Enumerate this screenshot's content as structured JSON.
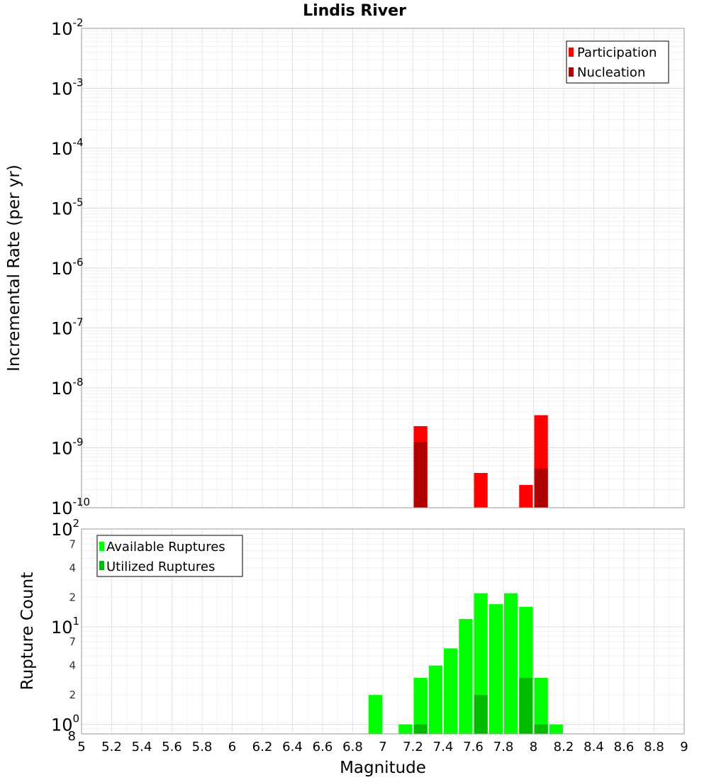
{
  "chart_data": [
    {
      "type": "bar",
      "title": "Lindis River",
      "xlabel": "",
      "ylabel": "Incremental Rate (per yr)",
      "xlim": [
        5,
        9
      ],
      "ylim": [
        1e-10,
        0.01
      ],
      "yscale": "log",
      "grid": true,
      "legend_position": "top-right",
      "bin_width": 0.1,
      "y_ticks": [
        {
          "base": "10",
          "exp": "-2"
        },
        {
          "base": "10",
          "exp": "-3"
        },
        {
          "base": "10",
          "exp": "-4"
        },
        {
          "base": "10",
          "exp": "-5"
        },
        {
          "base": "10",
          "exp": "-6"
        },
        {
          "base": "10",
          "exp": "-7"
        },
        {
          "base": "10",
          "exp": "-8"
        },
        {
          "base": "10",
          "exp": "-9"
        },
        {
          "base": "10",
          "exp": "-10"
        }
      ],
      "series": [
        {
          "name": "Participation",
          "color": "#ff0000",
          "x": [
            7.25,
            7.65,
            7.95,
            8.05
          ],
          "values": [
            2.3e-09,
            3.8e-10,
            2.4e-10,
            3.5e-09
          ]
        },
        {
          "name": "Nucleation",
          "color": "#b00000",
          "x": [
            7.25,
            8.05
          ],
          "values": [
            1.25e-09,
            4.5e-10
          ]
        }
      ]
    },
    {
      "type": "bar",
      "title": "",
      "xlabel": "Magnitude",
      "ylabel": "Rupture Count",
      "xlim": [
        5,
        9
      ],
      "ylim": [
        0.8,
        100
      ],
      "yscale": "log",
      "grid": true,
      "legend_position": "top-left",
      "bin_width": 0.1,
      "x_ticks": [
        "5",
        "5.2",
        "5.4",
        "5.6",
        "5.8",
        "6",
        "6.2",
        "6.4",
        "6.6",
        "6.8",
        "7",
        "7.2",
        "7.4",
        "7.6",
        "7.8",
        "8",
        "8.2",
        "8.4",
        "8.6",
        "8.8",
        "9"
      ],
      "y_major_ticks": [
        {
          "base": "10",
          "exp": "2"
        },
        {
          "base": "10",
          "exp": "1"
        },
        {
          "base": "10",
          "exp": "0"
        }
      ],
      "y_minor_ticks": [
        "7",
        "4",
        "2",
        "7",
        "4",
        "2",
        "8"
      ],
      "series": [
        {
          "name": "Available Ruptures",
          "color": "#00ff00",
          "x": [
            6.95,
            7.15,
            7.25,
            7.35,
            7.45,
            7.55,
            7.65,
            7.75,
            7.85,
            7.95,
            8.05,
            8.15
          ],
          "values": [
            2,
            1,
            3,
            4,
            6,
            12,
            22,
            17,
            22,
            16,
            3,
            1
          ]
        },
        {
          "name": "Utilized Ruptures",
          "color": "#00bb00",
          "x": [
            7.25,
            7.65,
            7.95,
            8.05
          ],
          "values": [
            1,
            2,
            3,
            1
          ]
        }
      ]
    }
  ]
}
